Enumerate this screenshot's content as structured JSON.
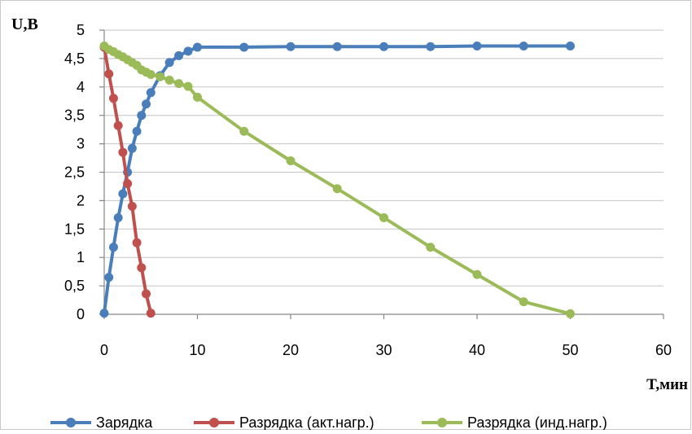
{
  "chart_data": {
    "type": "line",
    "title": "",
    "xlabel": "T,мин",
    "ylabel": "U,В",
    "xlim": [
      0,
      60
    ],
    "ylim": [
      0,
      5
    ],
    "x_ticks": [
      "0",
      "10",
      "20",
      "30",
      "40",
      "50",
      "60"
    ],
    "y_ticks": [
      "0",
      "0,5",
      "1",
      "1,5",
      "2",
      "2,5",
      "3",
      "3,5",
      "4",
      "4,5",
      "5"
    ],
    "grid": "horizontal",
    "legend_position": "bottom",
    "series": [
      {
        "name": "Зарядка",
        "color": "#4a7ebb",
        "points": [
          [
            0,
            0.02
          ],
          [
            0.5,
            0.65
          ],
          [
            1,
            1.18
          ],
          [
            1.5,
            1.7
          ],
          [
            2,
            2.12
          ],
          [
            2.5,
            2.5
          ],
          [
            3,
            2.92
          ],
          [
            3.5,
            3.22
          ],
          [
            4,
            3.5
          ],
          [
            4.5,
            3.7
          ],
          [
            5,
            3.9
          ],
          [
            6,
            4.2
          ],
          [
            7,
            4.43
          ],
          [
            8,
            4.55
          ],
          [
            9,
            4.63
          ],
          [
            10,
            4.7
          ],
          [
            15,
            4.7
          ],
          [
            20,
            4.71
          ],
          [
            25,
            4.71
          ],
          [
            30,
            4.71
          ],
          [
            35,
            4.71
          ],
          [
            40,
            4.72
          ],
          [
            45,
            4.72
          ],
          [
            50,
            4.72
          ]
        ]
      },
      {
        "name": "Разрядка (акт.нагр.)",
        "color": "#c0504d",
        "points": [
          [
            0,
            4.7
          ],
          [
            0.5,
            4.23
          ],
          [
            1,
            3.8
          ],
          [
            1.5,
            3.32
          ],
          [
            2,
            2.85
          ],
          [
            2.5,
            2.3
          ],
          [
            3,
            1.9
          ],
          [
            3.5,
            1.26
          ],
          [
            4,
            0.82
          ],
          [
            4.5,
            0.36
          ],
          [
            5,
            0.02
          ]
        ]
      },
      {
        "name": "Разрядка (инд.нагр.)",
        "color": "#9bbb59",
        "points": [
          [
            0,
            4.72
          ],
          [
            0.5,
            4.66
          ],
          [
            1,
            4.62
          ],
          [
            1.5,
            4.57
          ],
          [
            2,
            4.53
          ],
          [
            2.5,
            4.48
          ],
          [
            3,
            4.43
          ],
          [
            3.5,
            4.38
          ],
          [
            4,
            4.3
          ],
          [
            4.5,
            4.26
          ],
          [
            5,
            4.22
          ],
          [
            6,
            4.18
          ],
          [
            7,
            4.12
          ],
          [
            8,
            4.06
          ],
          [
            9,
            4.01
          ],
          [
            10,
            3.82
          ],
          [
            15,
            3.22
          ],
          [
            20,
            2.7
          ],
          [
            25,
            2.21
          ],
          [
            30,
            1.7
          ],
          [
            35,
            1.18
          ],
          [
            40,
            0.7
          ],
          [
            45,
            0.22
          ],
          [
            50,
            0.01
          ]
        ]
      }
    ]
  }
}
